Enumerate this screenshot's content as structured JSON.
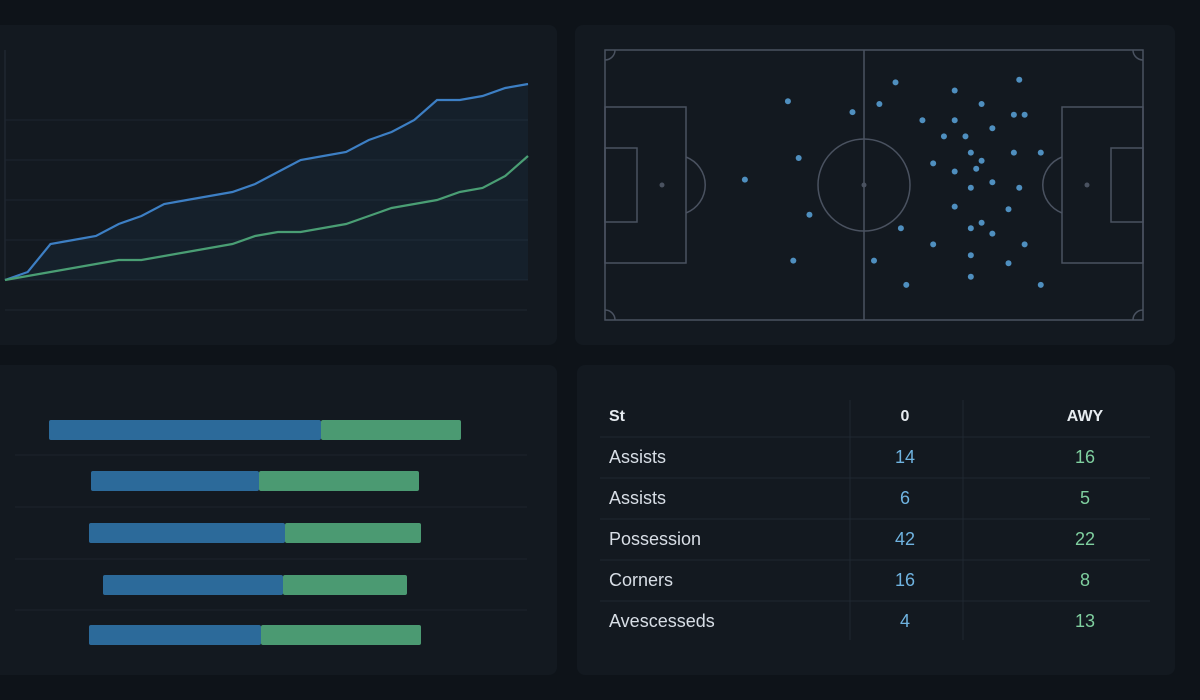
{
  "chart_data": [
    {
      "type": "line",
      "x": [
        0,
        1,
        2,
        3,
        4,
        5,
        6,
        7,
        8,
        9,
        10,
        11,
        12,
        13,
        14,
        15,
        16,
        17,
        18,
        19,
        20,
        21,
        22,
        23
      ],
      "series": [
        {
          "color": "#3d7fc4",
          "values": [
            0,
            2,
            9,
            10,
            11,
            14,
            16,
            19,
            20,
            21,
            22,
            24,
            27,
            30,
            31,
            32,
            35,
            37,
            40,
            45,
            45,
            46,
            48,
            49
          ]
        },
        {
          "color": "#4a9e74",
          "values": [
            0,
            1,
            2,
            3,
            4,
            5,
            5,
            6,
            7,
            8,
            9,
            11,
            12,
            12,
            13,
            14,
            16,
            18,
            19,
            20,
            22,
            23,
            26,
            31
          ]
        }
      ],
      "xlim": [
        0,
        23
      ],
      "ylim": [
        0,
        50
      ],
      "yticks": [
        0,
        10,
        20,
        30,
        40
      ],
      "grid": true
    },
    {
      "type": "scatter",
      "x": [
        34,
        46,
        54,
        51,
        65,
        77,
        70,
        76,
        78,
        65,
        59,
        63,
        72,
        67,
        36,
        26,
        61,
        68,
        76,
        81,
        70,
        69,
        65,
        72,
        68,
        77,
        38,
        55,
        65,
        75,
        70,
        68,
        72,
        61,
        78,
        35,
        50,
        68,
        75,
        68,
        56,
        81
      ],
      "values": [
        81,
        77,
        88,
        80,
        85,
        89,
        80,
        76,
        76,
        74,
        74,
        68,
        71,
        68,
        60,
        52,
        58,
        62,
        62,
        62,
        59,
        56,
        55,
        51,
        49,
        49,
        39,
        34,
        42,
        41,
        36,
        34,
        32,
        28,
        28,
        22,
        22,
        24,
        21,
        16,
        13,
        13
      ],
      "color": "#4f8fbf",
      "xlim": [
        0,
        100
      ],
      "ylim": [
        0,
        100
      ]
    },
    {
      "type": "bar",
      "orientation": "horizontal",
      "series": [
        {
          "color": "#2c6a9a",
          "values": [
            68,
            42,
            49,
            45,
            43
          ]
        },
        {
          "color": "#4b9a72",
          "values": [
            35,
            40,
            34,
            31,
            40
          ]
        }
      ],
      "xlim": [
        0,
        130
      ]
    }
  ],
  "table": {
    "header": [
      "St",
      "0",
      "AWY"
    ],
    "rows": [
      [
        "Assists",
        14,
        16
      ],
      [
        "Assists",
        6,
        5
      ],
      [
        "Possession",
        42,
        22
      ],
      [
        "Corners",
        16,
        8
      ],
      [
        "Avescesseds",
        4,
        13
      ]
    ]
  }
}
